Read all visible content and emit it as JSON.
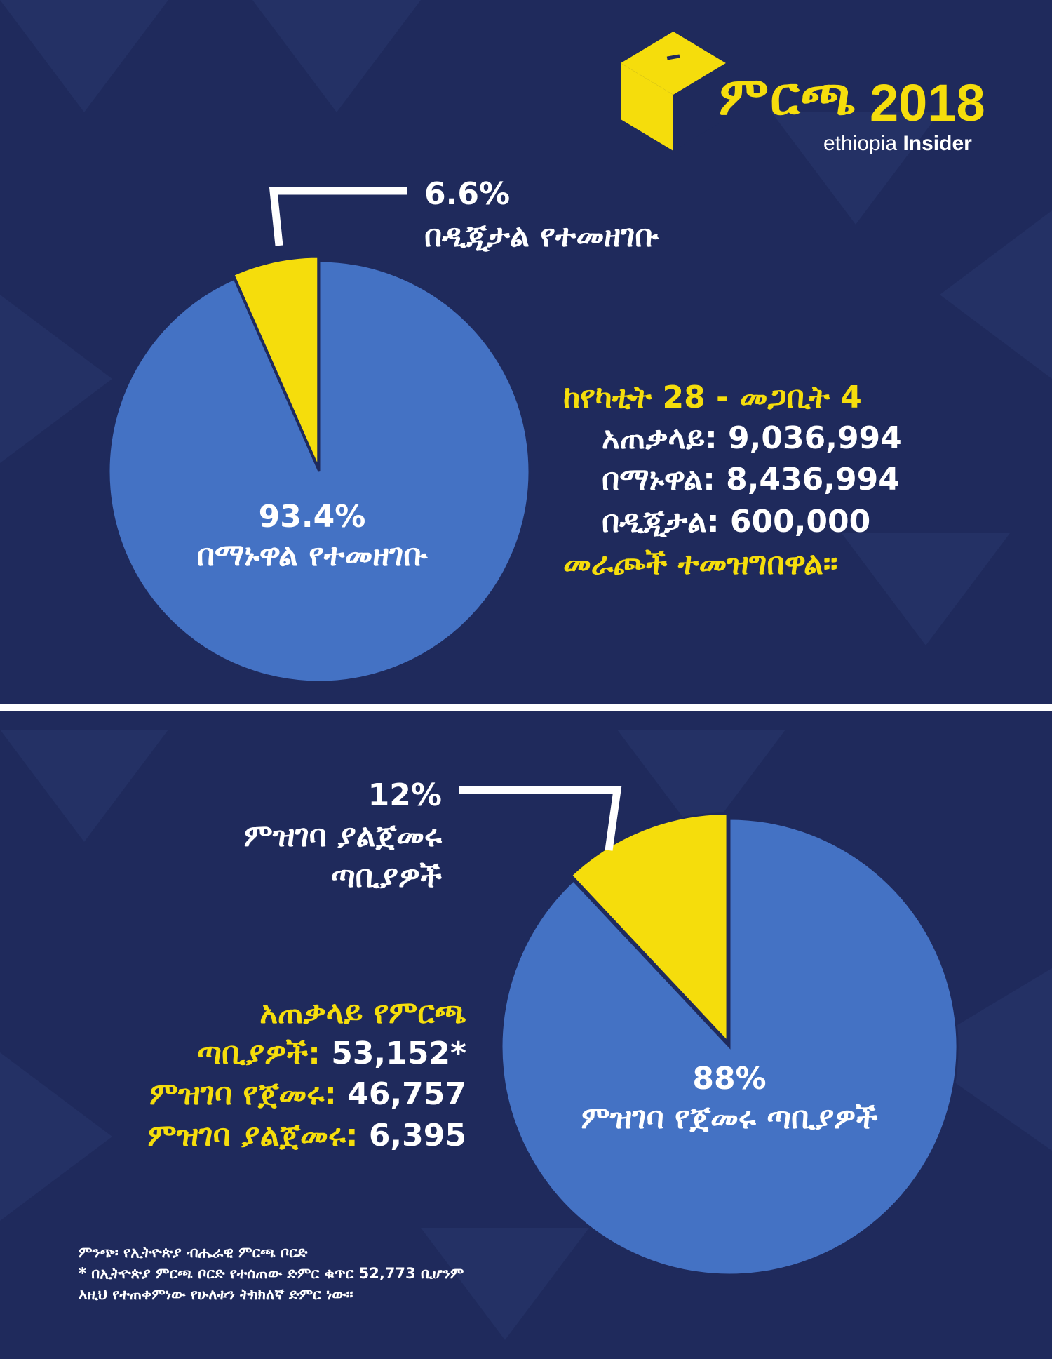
{
  "logo": {
    "title_amharic": "ምርጫ",
    "title_year": "2018",
    "sub_light": "ethiopia",
    "sub_bold": "Insider"
  },
  "colors": {
    "background": "#1f2a5c",
    "blue_slice": "#4472c4",
    "yellow": "#f5dd0c",
    "white": "#ffffff"
  },
  "chart_data": [
    {
      "type": "pie",
      "slices": [
        {
          "label": "በዲጂታል የተመዘገቡ",
          "value": 6.6,
          "value_label": "6.6%",
          "color": "#f5dd0c"
        },
        {
          "label": "በማኑዋል የተመዘገቡ",
          "value": 93.4,
          "value_label": "93.4%",
          "color": "#4472c4"
        }
      ]
    },
    {
      "type": "pie",
      "slices": [
        {
          "label": "ምዝገባ ያልጀመሩ ጣቢያዎች",
          "value": 12,
          "value_label": "12%",
          "color": "#f5dd0c"
        },
        {
          "label": "ምዝገባ የጀመሩ ጣቢያዎች",
          "value": 88,
          "value_label": "88%",
          "color": "#4472c4"
        }
      ]
    }
  ],
  "section1": {
    "yellow_label": {
      "pct": "6.6%",
      "line1": "በዲጂታል የተመዘገቡ"
    },
    "blue_label": {
      "pct": "93.4%",
      "line1": "በማኑዋል የተመዘገቡ"
    },
    "stats": {
      "heading": "ከየካቲት 28  - መጋቢት 4",
      "total": "አጠቃላይ: 9,036,994",
      "manual": "በማኑዋል: 8,436,994",
      "digital": "በዲጂታል: 600,000",
      "footer": "መራጮች ተመዝግበዋል።"
    }
  },
  "section2": {
    "yellow_label": {
      "pct": "12%",
      "line1": "ምዝገባ ያልጀመሩ",
      "line2": "ጣቢያዎች"
    },
    "blue_label": {
      "pct": "88%",
      "line1": "ምዝገባ የጀመሩ ጣቢያዎች"
    },
    "stats": {
      "total_line1": "አጠቃላይ የምርጫ",
      "total_line2_label": "ጣቢያዎች:",
      "total_line2_value": " 53,152*",
      "started_label": "ምዝገባ የጀመሩ:",
      "started_value": " 46,757",
      "not_started_label": "ምዝገባ ያልጀመሩ:",
      "not_started_value": " 6,395"
    }
  },
  "footnotes": {
    "source": "ምንጭ፡ የኢትዮጵያ ብሔራዊ ምርጫ ቦርድ",
    "note_line1": "* በኢትዮጵያ ምርጫ ቦርድ የተሰጠው ድምር ቁጥር 52,773 ቢሆንም",
    "note_line2": "እዚህ የተጠቀምነው የሁለቱን ትክክለኛ ድምር ነው።"
  }
}
